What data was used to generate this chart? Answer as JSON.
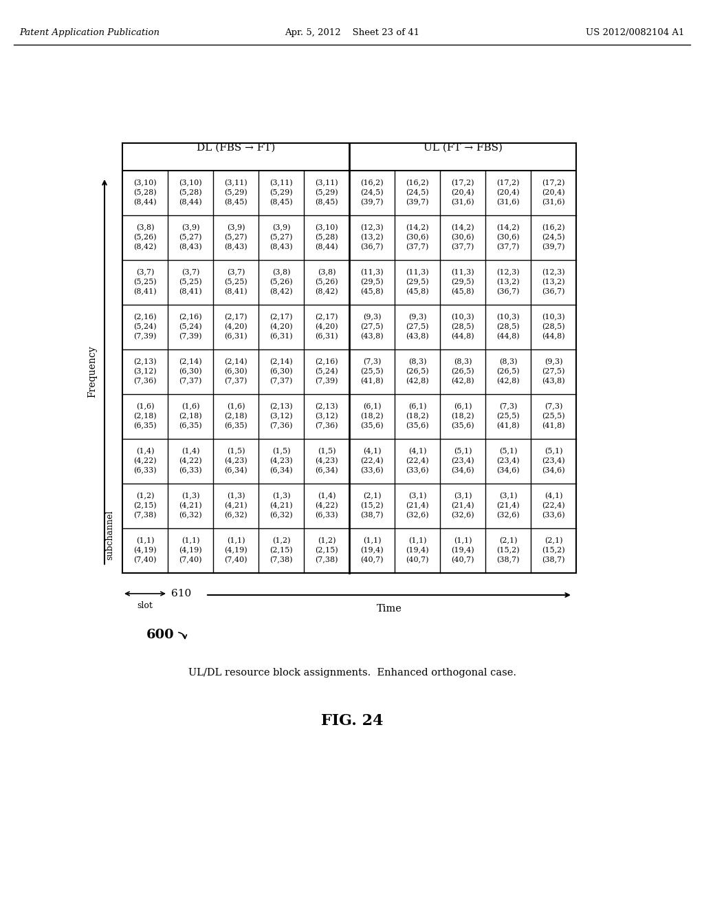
{
  "header_dl": "DL (FBS → FT)",
  "header_ul": "UL (FT → FBS)",
  "freq_label": "Frequency",
  "subchannel_label": "subchannel",
  "time_label": "Time",
  "slot_label": "slot",
  "slot_num": "610",
  "fig_num": "600",
  "caption": "UL/DL resource block assignments.  Enhanced orthogonal case.",
  "fig_label": "FIG. 24",
  "patent_left": "Patent Application Publication",
  "patent_date": "Apr. 5, 2012    Sheet 23 of 41",
  "patent_right": "US 2012/0082104 A1",
  "rows": [
    [
      [
        "(3,10)",
        "(5,28)",
        "(8,44)"
      ],
      [
        "(3,10)",
        "(5,28)",
        "(8,44)"
      ],
      [
        "(3,11)",
        "(5,29)",
        "(8,45)"
      ],
      [
        "(3,11)",
        "(5,29)",
        "(8,45)"
      ],
      [
        "(3,11)",
        "(5,29)",
        "(8,45)"
      ],
      [
        "(16,2)",
        "(24,5)",
        "(39,7)"
      ],
      [
        "(16,2)",
        "(24,5)",
        "(39,7)"
      ],
      [
        "(17,2)",
        "(20,4)",
        "(31,6)"
      ],
      [
        "(17,2)",
        "(20,4)",
        "(31,6)"
      ],
      [
        "(17,2)",
        "(20,4)",
        "(31,6)"
      ]
    ],
    [
      [
        "(3,8)",
        "(5,26)",
        "(8,42)"
      ],
      [
        "(3,9)",
        "(5,27)",
        "(8,43)"
      ],
      [
        "(3,9)",
        "(5,27)",
        "(8,43)"
      ],
      [
        "(3,9)",
        "(5,27)",
        "(8,43)"
      ],
      [
        "(3,10)",
        "(5,28)",
        "(8,44)"
      ],
      [
        "(12,3)",
        "(13,2)",
        "(36,7)"
      ],
      [
        "(14,2)",
        "(30,6)",
        "(37,7)"
      ],
      [
        "(14,2)",
        "(30,6)",
        "(37,7)"
      ],
      [
        "(14,2)",
        "(30,6)",
        "(37,7)"
      ],
      [
        "(16,2)",
        "(24,5)",
        "(39,7)"
      ]
    ],
    [
      [
        "(3,7)",
        "(5,25)",
        "(8,41)"
      ],
      [
        "(3,7)",
        "(5,25)",
        "(8,41)"
      ],
      [
        "(3,7)",
        "(5,25)",
        "(8,41)"
      ],
      [
        "(3,8)",
        "(5,26)",
        "(8,42)"
      ],
      [
        "(3,8)",
        "(5,26)",
        "(8,42)"
      ],
      [
        "(11,3)",
        "(29,5)",
        "(45,8)"
      ],
      [
        "(11,3)",
        "(29,5)",
        "(45,8)"
      ],
      [
        "(11,3)",
        "(29,5)",
        "(45,8)"
      ],
      [
        "(12,3)",
        "(13,2)",
        "(36,7)"
      ],
      [
        "(12,3)",
        "(13,2)",
        "(36,7)"
      ]
    ],
    [
      [
        "(2,16)",
        "(5,24)",
        "(7,39)"
      ],
      [
        "(2,16)",
        "(5,24)",
        "(7,39)"
      ],
      [
        "(2,17)",
        "(4,20)",
        "(6,31)"
      ],
      [
        "(2,17)",
        "(4,20)",
        "(6,31)"
      ],
      [
        "(2,17)",
        "(4,20)",
        "(6,31)"
      ],
      [
        "(9,3)",
        "(27,5)",
        "(43,8)"
      ],
      [
        "(9,3)",
        "(27,5)",
        "(43,8)"
      ],
      [
        "(10,3)",
        "(28,5)",
        "(44,8)"
      ],
      [
        "(10,3)",
        "(28,5)",
        "(44,8)"
      ],
      [
        "(10,3)",
        "(28,5)",
        "(44,8)"
      ]
    ],
    [
      [
        "(2,13)",
        "(3,12)",
        "(7,36)"
      ],
      [
        "(2,14)",
        "(6,30)",
        "(7,37)"
      ],
      [
        "(2,14)",
        "(6,30)",
        "(7,37)"
      ],
      [
        "(2,14)",
        "(6,30)",
        "(7,37)"
      ],
      [
        "(2,16)",
        "(5,24)",
        "(7,39)"
      ],
      [
        "(7,3)",
        "(25,5)",
        "(41,8)"
      ],
      [
        "(8,3)",
        "(26,5)",
        "(42,8)"
      ],
      [
        "(8,3)",
        "(26,5)",
        "(42,8)"
      ],
      [
        "(8,3)",
        "(26,5)",
        "(42,8)"
      ],
      [
        "(9,3)",
        "(27,5)",
        "(43,8)"
      ]
    ],
    [
      [
        "(1,6)",
        "(2,18)",
        "(6,35)"
      ],
      [
        "(1,6)",
        "(2,18)",
        "(6,35)"
      ],
      [
        "(1,6)",
        "(2,18)",
        "(6,35)"
      ],
      [
        "(2,13)",
        "(3,12)",
        "(7,36)"
      ],
      [
        "(2,13)",
        "(3,12)",
        "(7,36)"
      ],
      [
        "(6,1)",
        "(18,2)",
        "(35,6)"
      ],
      [
        "(6,1)",
        "(18,2)",
        "(35,6)"
      ],
      [
        "(6,1)",
        "(18,2)",
        "(35,6)"
      ],
      [
        "(7,3)",
        "(25,5)",
        "(41,8)"
      ],
      [
        "(7,3)",
        "(25,5)",
        "(41,8)"
      ]
    ],
    [
      [
        "(1,4)",
        "(4,22)",
        "(6,33)"
      ],
      [
        "(1,4)",
        "(4,22)",
        "(6,33)"
      ],
      [
        "(1,5)",
        "(4,23)",
        "(6,34)"
      ],
      [
        "(1,5)",
        "(4,23)",
        "(6,34)"
      ],
      [
        "(1,5)",
        "(4,23)",
        "(6,34)"
      ],
      [
        "(4,1)",
        "(22,4)",
        "(33,6)"
      ],
      [
        "(4,1)",
        "(22,4)",
        "(33,6)"
      ],
      [
        "(5,1)",
        "(23,4)",
        "(34,6)"
      ],
      [
        "(5,1)",
        "(23,4)",
        "(34,6)"
      ],
      [
        "(5,1)",
        "(23,4)",
        "(34,6)"
      ]
    ],
    [
      [
        "(1,2)",
        "(2,15)",
        "(7,38)"
      ],
      [
        "(1,3)",
        "(4,21)",
        "(6,32)"
      ],
      [
        "(1,3)",
        "(4,21)",
        "(6,32)"
      ],
      [
        "(1,3)",
        "(4,21)",
        "(6,32)"
      ],
      [
        "(1,4)",
        "(4,22)",
        "(6,33)"
      ],
      [
        "(2,1)",
        "(15,2)",
        "(38,7)"
      ],
      [
        "(3,1)",
        "(21,4)",
        "(32,6)"
      ],
      [
        "(3,1)",
        "(21,4)",
        "(32,6)"
      ],
      [
        "(3,1)",
        "(21,4)",
        "(32,6)"
      ],
      [
        "(4,1)",
        "(22,4)",
        "(33,6)"
      ]
    ],
    [
      [
        "(1,1)",
        "(4,19)",
        "(7,40)"
      ],
      [
        "(1,1)",
        "(4,19)",
        "(7,40)"
      ],
      [
        "(1,1)",
        "(4,19)",
        "(7,40)"
      ],
      [
        "(1,2)",
        "(2,15)",
        "(7,38)"
      ],
      [
        "(1,2)",
        "(2,15)",
        "(7,38)"
      ],
      [
        "(1,1)",
        "(19,4)",
        "(40,7)"
      ],
      [
        "(1,1)",
        "(19,4)",
        "(40,7)"
      ],
      [
        "(1,1)",
        "(19,4)",
        "(40,7)"
      ],
      [
        "(2,1)",
        "(15,2)",
        "(38,7)"
      ],
      [
        "(2,1)",
        "(15,2)",
        "(38,7)"
      ]
    ]
  ]
}
